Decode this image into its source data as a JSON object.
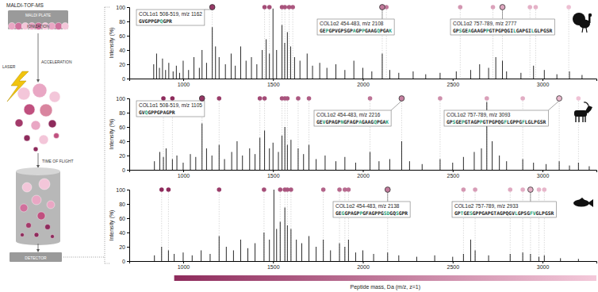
{
  "diagram": {
    "title": "MALDI-TOF-MS",
    "plate": "MALDI PLATE",
    "ionization": "IONIZATION",
    "laser": "LASER",
    "acceleration": "ACCELERATION",
    "flight": "TIME OF FLIGHT",
    "detector": "DETECTOR"
  },
  "colorbar": {
    "label": "Peptide mass, Da (m/z, z=1)",
    "range": [
      950,
      3300
    ],
    "colors": [
      "#8e2b5c",
      "#f4c9da"
    ]
  },
  "chart_data": [
    {
      "type": "stem",
      "y_label": "Intensity (%)",
      "xlim": [
        700,
        3300
      ],
      "xticks": [
        1000,
        1500,
        2000,
        2500,
        3000
      ],
      "ylim": [
        0,
        100
      ],
      "yticks": [
        0,
        20,
        40,
        60,
        80,
        100
      ],
      "x": [
        836,
        852,
        868,
        885,
        902,
        920,
        944,
        962,
        980,
        1000,
        1030,
        1060,
        1090,
        1105,
        1130,
        1162,
        1180,
        1200,
        1235,
        1267,
        1290,
        1320,
        1350,
        1380,
        1410,
        1440,
        1462,
        1480,
        1500,
        1520,
        1550,
        1565,
        1580,
        1598,
        1620,
        1650,
        1690,
        1720,
        1760,
        1800,
        1850,
        1900,
        1950,
        2000,
        2050,
        2108,
        2150,
        2200,
        2280,
        2350,
        2430,
        2520,
        2600,
        2650,
        2700,
        2740,
        2777,
        2800,
        2880,
        2950,
        3010,
        3080,
        3150,
        3220
      ],
      "values": [
        20,
        35,
        15,
        28,
        12,
        22,
        10,
        18,
        8,
        25,
        12,
        30,
        15,
        40,
        22,
        72,
        45,
        30,
        20,
        35,
        18,
        45,
        25,
        30,
        20,
        40,
        55,
        35,
        98,
        40,
        75,
        50,
        65,
        45,
        30,
        25,
        35,
        18,
        22,
        15,
        20,
        12,
        25,
        15,
        10,
        35,
        12,
        8,
        10,
        6,
        8,
        10,
        12,
        20,
        15,
        30,
        25,
        10,
        8,
        18,
        12,
        6,
        10,
        5
      ],
      "markers": [
        1162,
        1453,
        1480,
        1550,
        1566,
        1590,
        1610,
        2108,
        2131,
        2542,
        2724,
        2777,
        2930,
        2962,
        3146
      ],
      "annotations": [
        {
          "text": "COL1α1 508-519, m/z 1162",
          "x": 1162,
          "sequence": "GVGPPGPQGPR",
          "highlight": [
            7
          ]
        },
        {
          "text": "COL1α2 454-483, m/z 2108",
          "x": 2108,
          "sequence": "GEPGPVGPSGPAGPPGAAGQPGAK",
          "highlight": [
            2,
            11,
            14,
            19,
            23
          ]
        },
        {
          "text": "COL1α2 757-789, m/z 2777",
          "x": 2777,
          "sequence": "GPSGEAGAAGPPGTPGPQGILGAPGILGLPGSR",
          "highlight": [
            2,
            5,
            11,
            20,
            26
          ]
        }
      ]
    },
    {
      "type": "stem",
      "y_label": "Intensity (%)",
      "xlim": [
        700,
        3300
      ],
      "xticks": [
        1000,
        1500,
        2000,
        2500,
        3000
      ],
      "ylim": [
        0,
        100
      ],
      "yticks": [
        0,
        20,
        40,
        60,
        80,
        100
      ],
      "x": [
        840,
        870,
        890,
        905,
        940,
        965,
        1000,
        1040,
        1070,
        1105,
        1130,
        1160,
        1200,
        1230,
        1270,
        1300,
        1330,
        1370,
        1400,
        1427,
        1453,
        1480,
        1500,
        1530,
        1550,
        1566,
        1580,
        1600,
        1640,
        1670,
        1700,
        1740,
        1790,
        1850,
        1900,
        1960,
        2040,
        2090,
        2150,
        2216,
        2260,
        2330,
        2430,
        2500,
        2560,
        2620,
        2660,
        2690,
        2720,
        2760,
        2800,
        2890,
        2950,
        3020,
        3093,
        3150,
        3200,
        3260
      ],
      "values": [
        12,
        25,
        18,
        30,
        15,
        20,
        10,
        22,
        18,
        65,
        30,
        20,
        35,
        15,
        25,
        40,
        20,
        30,
        22,
        45,
        55,
        30,
        38,
        25,
        48,
        60,
        35,
        42,
        30,
        22,
        35,
        15,
        20,
        12,
        18,
        10,
        25,
        12,
        15,
        40,
        12,
        8,
        15,
        10,
        18,
        25,
        30,
        95,
        40,
        20,
        12,
        15,
        10,
        8,
        12,
        6,
        10,
        5
      ],
      "markers": [
        890,
        940,
        1105,
        1200,
        1427,
        1453,
        1550,
        1566,
        1580,
        1640,
        1700,
        2040,
        2216,
        2430,
        2690,
        2890,
        3093,
        3200
      ],
      "annotations": [
        {
          "text": "COL1α1 508-519, m/z 1105",
          "x": 1105,
          "sequence": "GVQGPPGPAGPR",
          "highlight": [
            2
          ]
        },
        {
          "text": "COL1α2 454-483, m/z 2216",
          "x": 2216,
          "sequence": "GEVGPAGPNGFAGPAGAAGQPGAK",
          "highlight": [
            2,
            8,
            14,
            19,
            23
          ]
        },
        {
          "text": "COL1α2 757-789, m/z 3093",
          "x": 3093,
          "sequence": "GPSGEPGTAGPPGTPGPQGFLGPPGFLGLPGSR",
          "highlight": [
            2,
            5,
            11,
            19,
            25
          ]
        }
      ]
    },
    {
      "type": "stem",
      "y_label": "Intensity (%)",
      "xlim": [
        700,
        3300
      ],
      "xticks": [
        1000,
        1500,
        2000,
        2500,
        3000
      ],
      "ylim": [
        0,
        100
      ],
      "yticks": [
        0,
        20,
        40,
        60,
        80,
        100
      ],
      "x": [
        840,
        880,
        918,
        950,
        1000,
        1050,
        1100,
        1150,
        1200,
        1240,
        1280,
        1320,
        1360,
        1400,
        1450,
        1480,
        1505,
        1520,
        1540,
        1566,
        1580,
        1600,
        1630,
        1660,
        1700,
        1740,
        1780,
        1820,
        1870,
        1900,
        1920,
        1960,
        2000,
        2060,
        2138,
        2200,
        2300,
        2400,
        2500,
        2560,
        2600,
        2625,
        2700,
        2820,
        2890,
        2933,
        2980,
        3010,
        3100,
        3200
      ],
      "values": [
        8,
        20,
        15,
        10,
        12,
        8,
        15,
        10,
        35,
        20,
        15,
        30,
        18,
        25,
        40,
        30,
        100,
        45,
        55,
        75,
        50,
        45,
        30,
        25,
        35,
        20,
        30,
        15,
        25,
        20,
        30,
        12,
        15,
        10,
        12,
        8,
        6,
        8,
        6,
        10,
        30,
        15,
        8,
        10,
        12,
        10,
        6,
        8,
        4,
        3
      ],
      "markers": [
        880,
        918,
        1200,
        1450,
        1540,
        1566,
        1580,
        1600,
        1780,
        1870,
        1900,
        1920,
        2138,
        2560,
        2625,
        2820,
        2890,
        2933,
        2980,
        3010
      ],
      "annotations": [
        {
          "text": "COL1α2 454-483, m/z 2138",
          "x": 2138,
          "sequence": "GEGGPAGPPGFAGPPGSDGQSGPR",
          "highlight": [
            2,
            8,
            16,
            17,
            20
          ]
        },
        {
          "text": "COL1α2 757-789, m/z 2933",
          "x": 2933,
          "sequence": "GPTGESGPPGAPGTAGPQGVLGPSGFVGLPGSR",
          "highlight": [
            2,
            5,
            20,
            25,
            26
          ]
        }
      ]
    }
  ]
}
